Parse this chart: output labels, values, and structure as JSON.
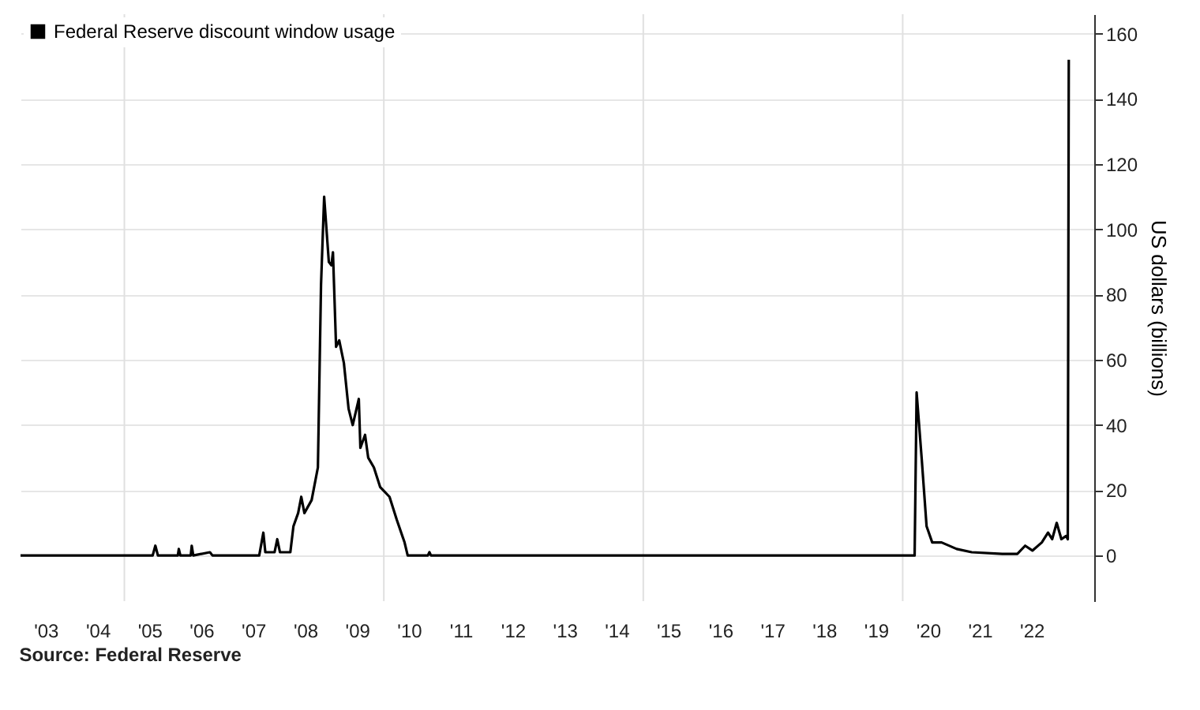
{
  "chart_data": {
    "type": "line",
    "ylabel": "US dollars (billions)",
    "annotations": [
      "Source: Federal Reserve"
    ],
    "x": [
      "2003-01-01",
      "2005-07-19",
      "2005-08-07",
      "2005-08-25",
      "2006-01-12",
      "2006-01-19",
      "2006-01-30",
      "2006-04-13",
      "2006-04-20",
      "2006-05-01",
      "2006-08-26",
      "2006-09-13",
      "2007-08-08",
      "2007-09-06",
      "2007-09-20",
      "2007-11-24",
      "2007-12-13",
      "2008-01-01",
      "2008-03-14",
      "2008-04-05",
      "2008-05-08",
      "2008-05-30",
      "2008-06-21",
      "2008-08-11",
      "2008-09-24",
      "2008-10-16",
      "2008-11-07",
      "2008-12-10",
      "2008-12-28",
      "2009-01-08",
      "2009-01-30",
      "2009-02-21",
      "2009-03-26",
      "2009-04-28",
      "2009-05-27",
      "2009-07-09",
      "2009-07-20",
      "2009-08-22",
      "2009-09-13",
      "2009-10-23",
      "2009-12-06",
      "2010-02-10",
      "2010-04-02",
      "2010-05-27",
      "2010-06-18",
      "2010-11-07",
      "2010-11-18",
      "2010-11-29",
      "2020-03-25",
      "2020-04-08",
      "2020-05-15",
      "2020-06-17",
      "2020-07-27",
      "2020-10-01",
      "2021-01-15",
      "2021-05-01",
      "2021-12-02",
      "2022-03-18",
      "2022-05-12",
      "2022-07-02",
      "2022-09-06",
      "2022-10-20",
      "2022-11-18",
      "2022-12-20",
      "2023-01-22",
      "2023-02-24",
      "2023-03-08",
      "2023-03-15"
    ],
    "series": [
      {
        "name": "Federal Reserve discount window usage",
        "color": "#000000",
        "values": [
          0,
          0,
          3,
          0,
          0,
          2,
          0,
          0,
          3,
          0,
          1,
          0,
          0,
          7,
          1,
          1,
          5,
          1,
          1,
          9,
          13,
          18,
          13,
          17,
          27,
          83,
          110,
          90,
          89,
          93,
          64,
          66,
          59,
          45,
          40,
          48,
          33,
          37,
          30,
          27,
          21,
          18,
          11,
          4,
          0,
          0,
          1,
          0,
          0,
          50,
          29,
          9,
          4,
          4,
          2,
          1,
          0.5,
          0.5,
          3,
          1.5,
          4,
          7,
          5,
          10,
          5,
          6,
          5,
          152
        ]
      }
    ],
    "xlim": [
      "2003-01-01",
      "2023-09-10"
    ],
    "xticks": [
      {
        "value": "2003-07-02",
        "label": "'03"
      },
      {
        "value": "2004-07-02",
        "label": "'04"
      },
      {
        "value": "2005-07-02",
        "label": "'05"
      },
      {
        "value": "2006-07-02",
        "label": "'06"
      },
      {
        "value": "2007-07-02",
        "label": "'07"
      },
      {
        "value": "2008-07-02",
        "label": "'08"
      },
      {
        "value": "2009-07-02",
        "label": "'09"
      },
      {
        "value": "2010-07-02",
        "label": "'10"
      },
      {
        "value": "2011-07-02",
        "label": "'11"
      },
      {
        "value": "2012-07-02",
        "label": "'12"
      },
      {
        "value": "2013-07-02",
        "label": "'13"
      },
      {
        "value": "2014-07-02",
        "label": "'14"
      },
      {
        "value": "2015-07-02",
        "label": "'15"
      },
      {
        "value": "2016-07-02",
        "label": "'16"
      },
      {
        "value": "2017-07-02",
        "label": "'17"
      },
      {
        "value": "2018-07-02",
        "label": "'18"
      },
      {
        "value": "2019-07-02",
        "label": "'19"
      },
      {
        "value": "2020-07-02",
        "label": "'20"
      },
      {
        "value": "2021-07-02",
        "label": "'21"
      },
      {
        "value": "2022-07-02",
        "label": "'22"
      }
    ],
    "ylim": [
      -14,
      166
    ],
    "yticks": [
      0,
      20,
      40,
      60,
      80,
      100,
      120,
      140,
      160
    ],
    "ref_lines": [
      {
        "axis": "x",
        "value": "2005-01-01",
        "color": "#e0e0e0"
      },
      {
        "axis": "x",
        "value": "2010-01-01",
        "color": "#e0e0e0"
      },
      {
        "axis": "x",
        "value": "2015-01-01",
        "color": "#e0e0e0"
      },
      {
        "axis": "x",
        "value": "2020-01-01",
        "color": "#e0e0e0"
      }
    ],
    "grid": "y",
    "legend": "top left",
    "marker": "none",
    "line_style": "solid"
  }
}
